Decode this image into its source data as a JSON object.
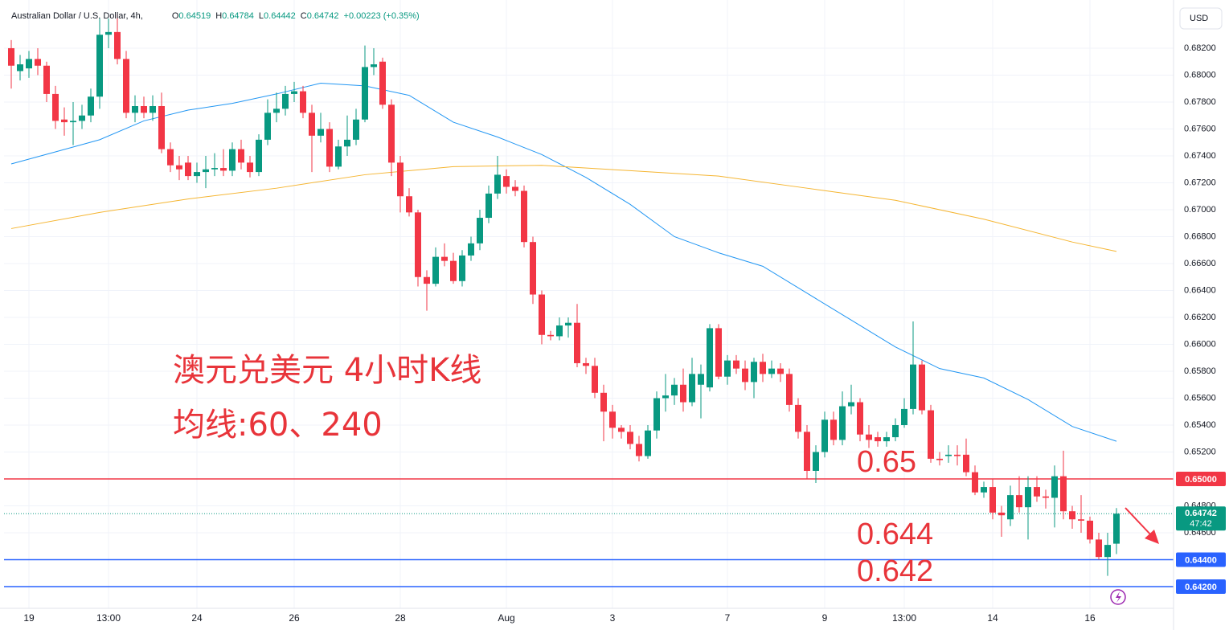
{
  "chart_data": {
    "type": "candlestick",
    "header": {
      "symbol": "Australian Dollar / U.S. Dollar, 4h,",
      "ohlc": [
        {
          "key": "O",
          "value": "0.64519"
        },
        {
          "key": "H",
          "value": "0.64784"
        },
        {
          "key": "L",
          "value": "0.64442"
        },
        {
          "key": "C",
          "value": "0.64742"
        }
      ],
      "change": "+0.00223 (+0.35%)"
    },
    "currency": "USD",
    "annotations": [
      "澳元兑美元 4小时K线",
      "均线:60、240",
      "0.65",
      "0.644",
      "0.642"
    ],
    "up_color": "#089981",
    "down_color": "#f23645",
    "categories": [
      null,
      null,
      "19",
      null,
      null,
      null,
      null,
      null,
      null,
      null,
      null,
      "13:00",
      null,
      null,
      null,
      null,
      null,
      null,
      null,
      null,
      null,
      "24",
      null,
      null,
      null,
      null,
      null,
      null,
      null,
      null,
      null,
      null,
      "26",
      null,
      null,
      null,
      null,
      null,
      null,
      null,
      null,
      null,
      null,
      null,
      "28",
      null,
      null,
      null,
      null,
      null,
      null,
      null,
      null,
      null,
      null,
      null,
      "Aug",
      null,
      null,
      null,
      null,
      null,
      null,
      null,
      null,
      null,
      null,
      null,
      "3",
      null,
      null,
      null,
      null,
      null,
      null,
      null,
      null,
      null,
      null,
      null,
      null,
      "7",
      null,
      null,
      null,
      null,
      null,
      null,
      null,
      null,
      null,
      null,
      "9",
      null,
      null,
      null,
      null,
      null,
      null,
      null,
      null,
      "13:00",
      null,
      null,
      null,
      null,
      null,
      null,
      null,
      null,
      null,
      "14",
      null,
      null,
      null,
      null,
      null,
      null,
      null,
      null,
      null,
      null,
      "16",
      null,
      null,
      null
    ],
    "open": [
      0.682,
      0.6803,
      0.6805,
      0.6812,
      0.6807,
      0.6786,
      0.6767,
      0.6765,
      0.6766,
      0.677,
      0.6784,
      0.683,
      0.6832,
      0.6812,
      0.6772,
      0.6777,
      0.6772,
      0.6777,
      0.6745,
      0.6733,
      0.6735,
      0.6725,
      0.6728,
      0.673,
      0.6731,
      0.6729,
      0.6745,
      0.6735,
      0.6728,
      0.6752,
      0.6772,
      0.6775,
      0.6786,
      0.6788,
      0.6772,
      0.6755,
      0.676,
      0.6732,
      0.6747,
      0.6752,
      0.6767,
      0.6806,
      0.681,
      0.6778,
      0.6735,
      0.671,
      0.6698,
      0.665,
      0.6645,
      0.6665,
      0.6662,
      0.6647,
      0.6666,
      0.6675,
      0.6694,
      0.6712,
      0.6725,
      0.6717,
      0.6714,
      0.6676,
      0.6637,
      0.6607,
      0.6606,
      0.6614,
      0.6616,
      0.6586,
      0.6584,
      0.6564,
      0.655,
      0.6538,
      0.6535,
      0.6526,
      0.6517,
      0.6536,
      0.656,
      0.6562,
      0.657,
      0.6557,
      0.657,
      0.6568,
      0.6612,
      0.6576,
      0.6588,
      0.6582,
      0.6572,
      0.6587,
      0.6578,
      0.6582,
      0.6578,
      0.6555,
      0.6535,
      0.6506,
      0.652,
      0.6544,
      0.6529,
      0.6554,
      0.6557,
      0.6533,
      0.6531,
      0.6528,
      0.6531,
      0.654,
      0.6552,
      0.6585,
      0.6551,
      0.6515,
      0.6517,
      0.6518,
      0.6518,
      0.6505,
      0.649,
      0.6494,
      0.6475,
      0.647,
      0.6488,
      0.6479,
      0.6494,
      0.6487,
      0.6486,
      0.6502,
      0.6476,
      0.647,
      0.6469,
      0.6455,
      0.6442,
      0.64519
    ],
    "high": [
      0.6826,
      0.6815,
      0.6818,
      0.682,
      0.681,
      0.6792,
      0.6776,
      0.678,
      0.6778,
      0.679,
      0.6842,
      0.6842,
      0.6845,
      0.6818,
      0.6785,
      0.6784,
      0.6785,
      0.6787,
      0.675,
      0.674,
      0.674,
      0.6735,
      0.674,
      0.6742,
      0.6745,
      0.675,
      0.6752,
      0.674,
      0.6756,
      0.6782,
      0.6787,
      0.6792,
      0.6795,
      0.6792,
      0.6778,
      0.6772,
      0.6765,
      0.6752,
      0.677,
      0.6775,
      0.6822,
      0.682,
      0.6813,
      0.6782,
      0.674,
      0.6716,
      0.67,
      0.6655,
      0.6672,
      0.6675,
      0.6668,
      0.667,
      0.668,
      0.67,
      0.6718,
      0.674,
      0.673,
      0.6722,
      0.6718,
      0.668,
      0.664,
      0.661,
      0.662,
      0.662,
      0.663,
      0.659,
      0.659,
      0.657,
      0.6555,
      0.654,
      0.654,
      0.6532,
      0.654,
      0.6565,
      0.6578,
      0.6575,
      0.6582,
      0.659,
      0.6585,
      0.6615,
      0.6615,
      0.6592,
      0.6592,
      0.6588,
      0.659,
      0.6593,
      0.6588,
      0.6586,
      0.6582,
      0.656,
      0.654,
      0.6525,
      0.655,
      0.655,
      0.6565,
      0.657,
      0.656,
      0.654,
      0.6535,
      0.6535,
      0.6545,
      0.656,
      0.6617,
      0.6588,
      0.6555,
      0.652,
      0.6525,
      0.6525,
      0.653,
      0.651,
      0.6498,
      0.65,
      0.648,
      0.6495,
      0.6502,
      0.6502,
      0.6502,
      0.6492,
      0.651,
      0.6521,
      0.648,
      0.6488,
      0.6472,
      0.646,
      0.646,
      0.64784
    ],
    "low": [
      0.679,
      0.6796,
      0.6798,
      0.68,
      0.678,
      0.676,
      0.6755,
      0.6748,
      0.676,
      0.6765,
      0.6775,
      0.682,
      0.6808,
      0.6768,
      0.6765,
      0.6768,
      0.6766,
      0.6742,
      0.6728,
      0.6722,
      0.6722,
      0.672,
      0.6716,
      0.6725,
      0.6725,
      0.6725,
      0.673,
      0.6724,
      0.6725,
      0.6748,
      0.6765,
      0.677,
      0.678,
      0.6768,
      0.6728,
      0.675,
      0.6728,
      0.673,
      0.674,
      0.6748,
      0.6765,
      0.68,
      0.6775,
      0.6725,
      0.6698,
      0.6695,
      0.6643,
      0.6625,
      0.6643,
      0.6658,
      0.6645,
      0.6643,
      0.6662,
      0.667,
      0.669,
      0.6708,
      0.6712,
      0.671,
      0.6672,
      0.663,
      0.66,
      0.6603,
      0.6603,
      0.6605,
      0.6583,
      0.6578,
      0.656,
      0.6528,
      0.653,
      0.653,
      0.6522,
      0.6513,
      0.6515,
      0.653,
      0.655,
      0.6555,
      0.655,
      0.6554,
      0.6545,
      0.6565,
      0.6574,
      0.657,
      0.6578,
      0.6566,
      0.656,
      0.6572,
      0.6575,
      0.6572,
      0.655,
      0.653,
      0.65,
      0.6497,
      0.6516,
      0.6525,
      0.6525,
      0.6548,
      0.6528,
      0.6523,
      0.6524,
      0.6524,
      0.6528,
      0.6538,
      0.6548,
      0.6548,
      0.6512,
      0.651,
      0.6512,
      0.651,
      0.6502,
      0.6488,
      0.6486,
      0.647,
      0.6457,
      0.6465,
      0.6475,
      0.6455,
      0.6483,
      0.6478,
      0.6464,
      0.647,
      0.6463,
      0.646,
      0.6452,
      0.644,
      0.6428,
      0.64442
    ],
    "close": [
      0.6807,
      0.6808,
      0.6812,
      0.6807,
      0.6786,
      0.6766,
      0.6765,
      0.6766,
      0.677,
      0.6784,
      0.683,
      0.6832,
      0.6812,
      0.6772,
      0.6777,
      0.6772,
      0.6777,
      0.6745,
      0.6733,
      0.673,
      0.6725,
      0.6728,
      0.673,
      0.6731,
      0.6729,
      0.6745,
      0.6735,
      0.6728,
      0.6752,
      0.6772,
      0.6775,
      0.6786,
      0.6788,
      0.6772,
      0.6755,
      0.676,
      0.6732,
      0.6747,
      0.6752,
      0.6767,
      0.6806,
      0.6808,
      0.6778,
      0.6735,
      0.671,
      0.6698,
      0.665,
      0.6645,
      0.6665,
      0.6662,
      0.6647,
      0.6666,
      0.6675,
      0.6694,
      0.6712,
      0.6726,
      0.6717,
      0.6714,
      0.6676,
      0.6637,
      0.6607,
      0.6606,
      0.6614,
      0.6616,
      0.6586,
      0.6584,
      0.6564,
      0.655,
      0.6538,
      0.6535,
      0.6526,
      0.6517,
      0.6536,
      0.656,
      0.6562,
      0.657,
      0.6557,
      0.6578,
      0.6578,
      0.6612,
      0.6576,
      0.6588,
      0.6582,
      0.6572,
      0.6587,
      0.6578,
      0.6582,
      0.6578,
      0.6555,
      0.6535,
      0.6506,
      0.652,
      0.6544,
      0.6529,
      0.6554,
      0.6557,
      0.6533,
      0.6529,
      0.6528,
      0.6531,
      0.654,
      0.6552,
      0.6585,
      0.6551,
      0.6515,
      0.6514,
      0.6518,
      0.6517,
      0.6505,
      0.649,
      0.6494,
      0.6475,
      0.6473,
      0.6488,
      0.6479,
      0.6494,
      0.6487,
      0.6486,
      0.6502,
      0.6476,
      0.647,
      0.6469,
      0.6455,
      0.6442,
      0.6451,
      0.64742
    ],
    "lines": [
      {
        "color": "#2196f3",
        "x": [
          0,
          5,
          10,
          15,
          20,
          25,
          30,
          35,
          40,
          45,
          50,
          55,
          60,
          65,
          70,
          75,
          80,
          85,
          90,
          95,
          100,
          105,
          110,
          115,
          120,
          125
        ],
        "values": [
          0.6734,
          0.6743,
          0.6752,
          0.6766,
          0.6774,
          0.6779,
          0.6786,
          0.6794,
          0.6792,
          0.6785,
          0.6765,
          0.6754,
          0.6741,
          0.6724,
          0.6704,
          0.668,
          0.6668,
          0.6658,
          0.6638,
          0.6618,
          0.6598,
          0.6582,
          0.6575,
          0.6559,
          0.6539,
          0.6528
        ]
      },
      {
        "color": "#f5b531",
        "x": [
          0,
          10,
          20,
          30,
          40,
          50,
          60,
          70,
          80,
          90,
          100,
          110,
          120,
          125
        ],
        "values": [
          0.6686,
          0.6698,
          0.6708,
          0.6716,
          0.6726,
          0.6732,
          0.6733,
          0.6729,
          0.6725,
          0.6716,
          0.6707,
          0.6693,
          0.6676,
          0.6669
        ]
      }
    ],
    "hlines": [
      {
        "value": 0.65,
        "label": "0.65000",
        "color": "#f23645"
      },
      {
        "value": 0.644,
        "label": "0.64400",
        "color": "#2962ff"
      },
      {
        "value": 0.642,
        "label": "0.64200",
        "color": "#2962ff"
      }
    ],
    "current": {
      "value": 0.64742,
      "label": "0.64742",
      "countdown": "47:42",
      "color": "#089981"
    },
    "ylim": [
      0.64039,
      0.68558
    ],
    "yticks": [
      {
        "value": 0.646,
        "label": "0.64600"
      },
      {
        "value": 0.648,
        "label": "0.64800"
      },
      {
        "value": 0.65,
        "label": "0.65000"
      },
      {
        "value": 0.652,
        "label": "0.65200"
      },
      {
        "value": 0.654,
        "label": "0.65400"
      },
      {
        "value": 0.656,
        "label": "0.65600"
      },
      {
        "value": 0.658,
        "label": "0.65800"
      },
      {
        "value": 0.66,
        "label": "0.66000"
      },
      {
        "value": 0.662,
        "label": "0.66200"
      },
      {
        "value": 0.664,
        "label": "0.66400"
      },
      {
        "value": 0.666,
        "label": "0.66600"
      },
      {
        "value": 0.668,
        "label": "0.66800"
      },
      {
        "value": 0.67,
        "label": "0.67000"
      },
      {
        "value": 0.672,
        "label": "0.67200"
      },
      {
        "value": 0.674,
        "label": "0.67400"
      },
      {
        "value": 0.676,
        "label": "0.67600"
      },
      {
        "value": 0.678,
        "label": "0.67800"
      },
      {
        "value": 0.68,
        "label": "0.68000"
      },
      {
        "value": 0.682,
        "label": "0.68200"
      }
    ],
    "grid": true
  }
}
